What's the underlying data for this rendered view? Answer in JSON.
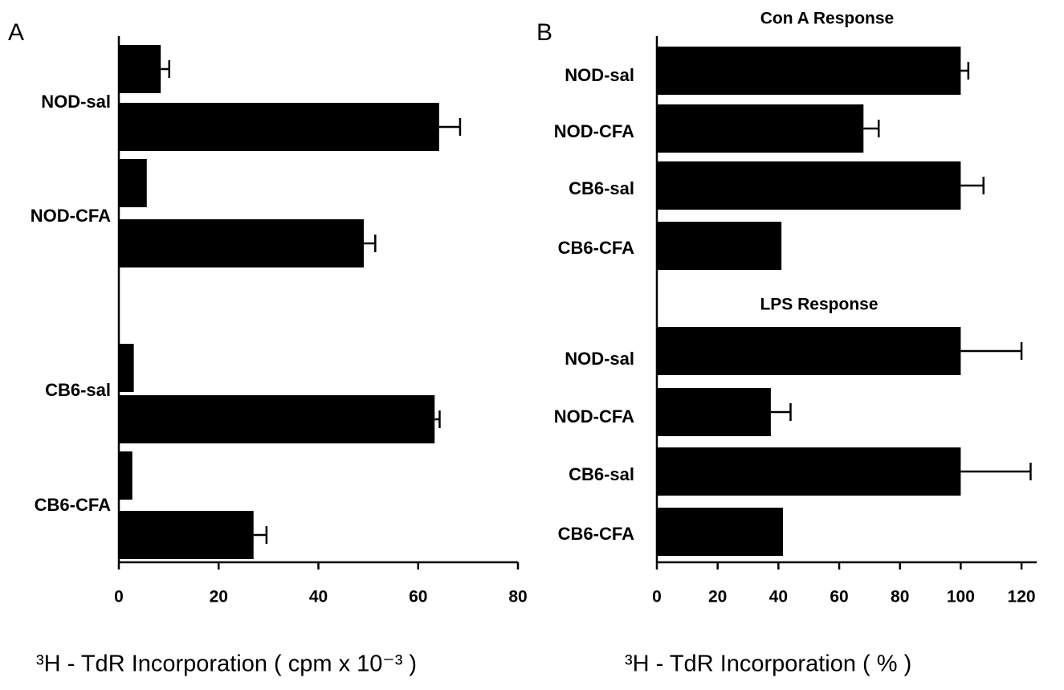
{
  "chart_data": [
    {
      "type": "bar",
      "panel_label": "A",
      "orientation": "horizontal",
      "categories": [
        "NOD-sal",
        "NOD-CFA",
        "CB6-sal",
        "CB6-CFA"
      ],
      "series": [
        {
          "color": "#000000",
          "values": [
            8.4,
            5.6,
            3,
            2.7
          ],
          "errors": [
            1.7,
            null,
            null,
            null
          ]
        },
        {
          "color": "#000000",
          "values": [
            64.2,
            49.1,
            63.3,
            27
          ],
          "errors": [
            4.2,
            2.3,
            1,
            2.6
          ]
        }
      ],
      "xlim": [
        0,
        80
      ],
      "xticks": [
        0,
        20,
        40,
        60,
        80
      ],
      "xlabel": "³H - TdR Incorporation  ( cpm x 10⁻³ )"
    },
    {
      "type": "bar",
      "panel_label": "B",
      "orientation": "horizontal",
      "annotations": [
        "Con A Response",
        "LPS Response"
      ],
      "categories": [
        "NOD-sal",
        "NOD-CFA",
        "CB6-sal",
        "CB6-CFA",
        "NOD-sal",
        "NOD-CFA",
        "CB6-sal",
        "CB6-CFA"
      ],
      "color": "#000000",
      "values": [
        100,
        68,
        100,
        41,
        100,
        37.5,
        100,
        41.5
      ],
      "errors": [
        2.5,
        5,
        7.5,
        null,
        20,
        6.5,
        23,
        null
      ],
      "xlim": [
        0,
        125
      ],
      "xticks": [
        0,
        20,
        40,
        60,
        80,
        100,
        120
      ],
      "xlabel": "³H - TdR Incorporation  ( % )"
    }
  ]
}
